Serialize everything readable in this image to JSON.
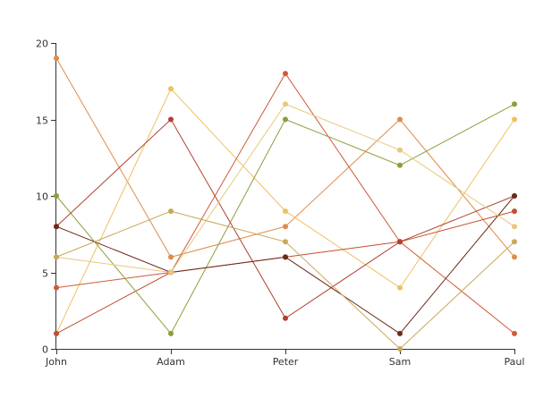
{
  "chart_data": {
    "type": "line",
    "title": "",
    "xlabel": "",
    "ylabel": "",
    "categories": [
      "John",
      "Adam",
      "Peter",
      "Sam",
      "Paul"
    ],
    "ylim": [
      0,
      20
    ],
    "yticks": [
      "0",
      "5",
      "10",
      "15",
      "20"
    ],
    "grid": false,
    "legend": "none",
    "series": [
      {
        "color": "#e08b4a",
        "values": [
          19,
          6,
          8,
          15,
          6
        ]
      },
      {
        "color": "#f0c060",
        "values": [
          1,
          17,
          9,
          4,
          15
        ]
      },
      {
        "color": "#d05a3a",
        "values": [
          4,
          5,
          18,
          7,
          1
        ]
      },
      {
        "color": "#c44e2f",
        "values": [
          1,
          5,
          6,
          7,
          9
        ]
      },
      {
        "color": "#8d9e3a",
        "values": [
          10,
          1,
          15,
          12,
          16
        ]
      },
      {
        "color": "#b04030",
        "values": [
          8,
          15,
          2,
          7,
          10
        ]
      },
      {
        "color": "#6b2a1a",
        "values": [
          8,
          5,
          6,
          1,
          10
        ]
      },
      {
        "color": "#e8c87a",
        "values": [
          6,
          5,
          16,
          13,
          8
        ]
      },
      {
        "color": "#c8a85a",
        "values": [
          6,
          9,
          7,
          0,
          7
        ]
      }
    ]
  }
}
